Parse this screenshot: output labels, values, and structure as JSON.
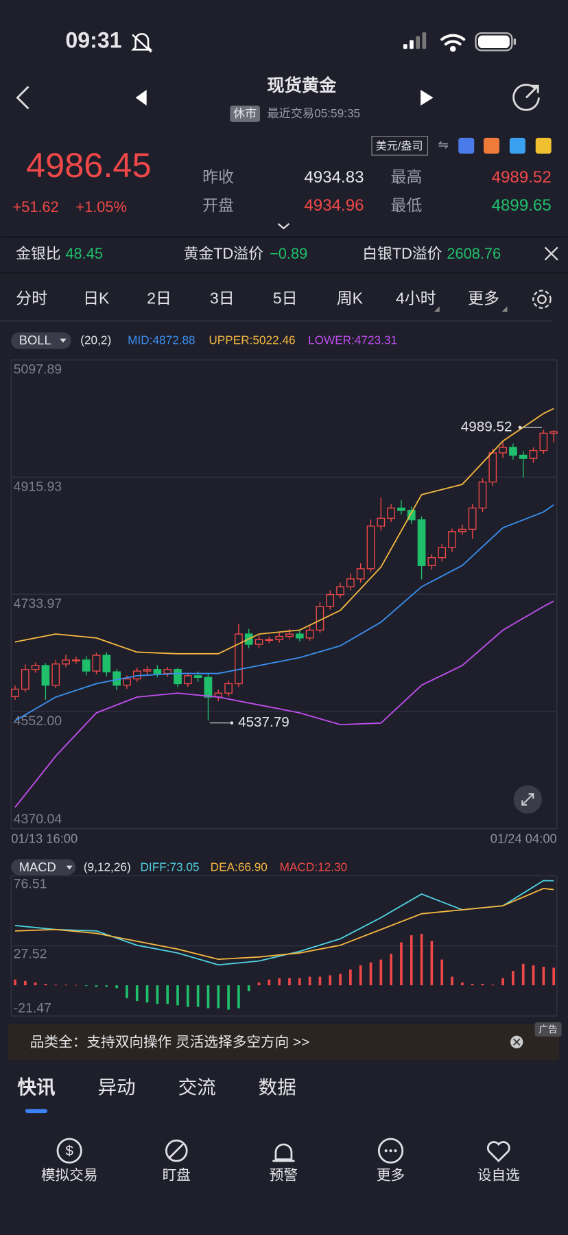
{
  "status_bar": {
    "time": "09:31"
  },
  "header": {
    "title": "现货黄金",
    "status": "休市",
    "last_trade": "最近交易05:59:35"
  },
  "quote": {
    "price": "4986.45",
    "change": "+51.62",
    "change_pct": "+1.05%",
    "unit": "美元/盎司",
    "fields": [
      {
        "label": "昨收",
        "value": "4934.83"
      },
      {
        "label": "开盘",
        "value": "4934.96"
      },
      {
        "label": "最高",
        "value": "4989.52"
      },
      {
        "label": "最低",
        "value": "4899.65"
      }
    ]
  },
  "ratios": [
    {
      "label": "金银比",
      "value": "48.45"
    },
    {
      "label": "黄金TD溢价",
      "value": "−0.89"
    },
    {
      "label": "白银TD溢价",
      "value": "2608.76"
    }
  ],
  "periods": [
    "分时",
    "日K",
    "2日",
    "3日",
    "5日",
    "周K",
    "4小时",
    "更多"
  ],
  "active_period": 6,
  "chart_data": [
    {
      "type": "candlestick",
      "indicator": "BOLL",
      "params": "(20,2)",
      "up_color": "#f04848",
      "down_color": "#1fbf6c",
      "xlim": [
        0,
        53
      ],
      "xticks": [
        {
          "value": 0,
          "label": "01/13 16:00"
        },
        {
          "value": 53,
          "label": "01/24 04:00"
        }
      ],
      "ylim": [
        4370.04,
        5097.89
      ],
      "yticks": [
        5097.89,
        4915.93,
        4733.97,
        {
          "value": 4552,
          "label": "4552.00"
        },
        4370.04
      ],
      "grid": true,
      "open": [
        4575.0,
        4586.6,
        4617.1,
        4623.3,
        4592.7,
        4625.7,
        4631.8,
        4631.8,
        4614.7,
        4639.2,
        4613.5,
        4592.7,
        4602.5,
        4614.7,
        4617.1,
        4611.0,
        4617.1,
        4595.1,
        4607.4,
        4604.9,
        4574.3,
        4580.4,
        4595.1,
        4672.2,
        4656.3,
        4663.6,
        4663.6,
        4668.5,
        4672.2,
        4666.1,
        4678.3,
        4715.0,
        4733.4,
        4745.6,
        4757.8,
        4773.7,
        4839.8,
        4852.0,
        4867.9,
        4864.2,
        4849.6,
        4778.6,
        4790.9,
        4806.8,
        4831.2,
        4834.9,
        4867.9,
        4908.3,
        4953.6,
        4962.1,
        4949.9,
        4945.0,
        4957.2,
        4984.1
      ],
      "high": [
        4592,
        4625,
        4628,
        4627,
        4632,
        4640,
        4637,
        4638,
        4643,
        4644,
        4618,
        4608,
        4620,
        4622,
        4624,
        4621,
        4620,
        4612,
        4614,
        4610,
        4586,
        4600,
        4688,
        4680,
        4670,
        4668,
        4674,
        4680,
        4677,
        4684,
        4722,
        4740,
        4752,
        4766,
        4782,
        4850,
        4884,
        4874,
        4880,
        4870,
        4855,
        4796,
        4812,
        4836,
        4842,
        4874,
        4914,
        4960,
        4970,
        4968,
        4956,
        4962,
        4989.52,
        4988.9
      ],
      "low": [
        4570,
        4582,
        4612,
        4570,
        4588,
        4621,
        4626,
        4608,
        4610,
        4607,
        4585,
        4587,
        4598,
        4609,
        4605,
        4606,
        4590,
        4590,
        4598,
        4537.79,
        4568,
        4575,
        4590,
        4650,
        4651,
        4658,
        4659,
        4664,
        4661,
        4662,
        4674,
        4710,
        4728,
        4740,
        4752,
        4768,
        4833,
        4846,
        4858,
        4843,
        4757,
        4772,
        4785,
        4800,
        4826,
        4820,
        4862,
        4902,
        4946,
        4943,
        4915,
        4938,
        4952,
        4970
      ],
      "close": [
        4586.6,
        4617.1,
        4623.3,
        4592.7,
        4625.7,
        4631.8,
        4631.8,
        4614.7,
        4639.2,
        4613.5,
        4592.7,
        4602.5,
        4614.7,
        4617.1,
        4611.0,
        4617.1,
        4595.1,
        4607.4,
        4604.9,
        4574.3,
        4580.4,
        4595.1,
        4672.2,
        4656.3,
        4663.6,
        4663.6,
        4668.5,
        4672.2,
        4666.1,
        4678.3,
        4715.0,
        4733.4,
        4745.6,
        4757.8,
        4773.7,
        4839.8,
        4852.0,
        4867.9,
        4864.2,
        4849.6,
        4778.6,
        4790.9,
        4806.8,
        4831.2,
        4834.9,
        4867.9,
        4908.3,
        4953.6,
        4962.1,
        4949.9,
        4945.0,
        4957.2,
        4984.1,
        4986.45
      ],
      "series": [
        {
          "label": "MID:4872.88",
          "color": "#3a8ff0",
          "x": [
            0,
            4,
            8,
            12,
            16,
            20,
            24,
            28,
            32,
            36,
            40,
            44,
            48,
            52,
            53
          ],
          "values": [
            4537.6,
            4574.3,
            4595.1,
            4607.4,
            4611.0,
            4611.0,
            4623.3,
            4635.5,
            4653.9,
            4690.6,
            4745.6,
            4778.6,
            4837.3,
            4861.8,
            4872.88
          ]
        },
        {
          "label": "UPPER:5022.46",
          "color": "#f5b740",
          "x": [
            0,
            4,
            8,
            12,
            16,
            20,
            24,
            28,
            32,
            36,
            40,
            44,
            48,
            52,
            53
          ],
          "values": [
            4659.9,
            4672.2,
            4666.1,
            4644.1,
            4641.6,
            4641.6,
            4672.2,
            4678.3,
            4708.9,
            4776.2,
            4888.7,
            4904.6,
            4971.9,
            5014.7,
            5022.46
          ]
        },
        {
          "label": "LOWER:4723.31",
          "color": "#c04ef0",
          "x": [
            0,
            4,
            8,
            12,
            16,
            20,
            24,
            28,
            32,
            36,
            40,
            44,
            48,
            52,
            53
          ],
          "values": [
            4403.1,
            4482.6,
            4549.8,
            4574.3,
            4580.4,
            4574.3,
            4562.1,
            4549.8,
            4531.5,
            4533.9,
            4592.7,
            4623.3,
            4678.3,
            4715.0,
            4723.31
          ]
        }
      ],
      "annotations": [
        {
          "x": 52,
          "value": 4989.52,
          "side": "left"
        },
        {
          "x": 19,
          "value": 4537.79,
          "side": "right"
        }
      ]
    },
    {
      "type": "bar",
      "indicator": "MACD",
      "params": "(9,12,26)",
      "xlim": [
        0,
        53
      ],
      "ylim": [
        -21.47,
        76.51
      ],
      "yticks": [
        76.51,
        27.52,
        -21.47
      ],
      "grid": true,
      "histogram": {
        "label": "MACD:12.30",
        "up_color": "#f04848",
        "down_color": "#1fbf6c",
        "values": [
          4,
          3,
          2,
          1,
          0.5,
          0.5,
          0.3,
          -0.5,
          -1,
          -1,
          -2,
          -9,
          -11,
          -12,
          -13,
          -13,
          -14,
          -15,
          -15,
          -16,
          -16,
          -17,
          -16,
          -4,
          2,
          4,
          5,
          5,
          5,
          6,
          6,
          7,
          8,
          11,
          14,
          16,
          18,
          22,
          30,
          35,
          36,
          31,
          18,
          6,
          2,
          1,
          1,
          0.5,
          5,
          10,
          15,
          14,
          13,
          12.3
        ]
      },
      "series": [
        {
          "label": "DIFF:73.05",
          "color": "#4fd0e0",
          "x": [
            0,
            4,
            8,
            12,
            16,
            20,
            24,
            28,
            32,
            36,
            40,
            44,
            48,
            52,
            53
          ],
          "values": [
            41.8,
            39,
            38,
            28,
            22.6,
            14.3,
            17,
            23.7,
            32.5,
            47.3,
            63.8,
            52.8,
            55.6,
            73.2,
            73.05
          ]
        },
        {
          "label": "DEA:66.90",
          "color": "#f5b740",
          "x": [
            0,
            4,
            8,
            12,
            16,
            20,
            24,
            28,
            32,
            36,
            40,
            44,
            48,
            52,
            53
          ],
          "values": [
            38,
            39,
            36.3,
            30.8,
            25.3,
            18.2,
            19.8,
            22.6,
            28,
            39,
            50,
            52.8,
            55.6,
            67.7,
            66.9
          ]
        }
      ]
    }
  ],
  "ad": {
    "text": "品类全：支持双向操作 灵活选择多空方向 >>",
    "tag": "广告"
  },
  "news_tabs": [
    "快讯",
    "异动",
    "交流",
    "数据"
  ],
  "nav": [
    "模拟交易",
    "盯盘",
    "预警",
    "更多",
    "设自选"
  ]
}
